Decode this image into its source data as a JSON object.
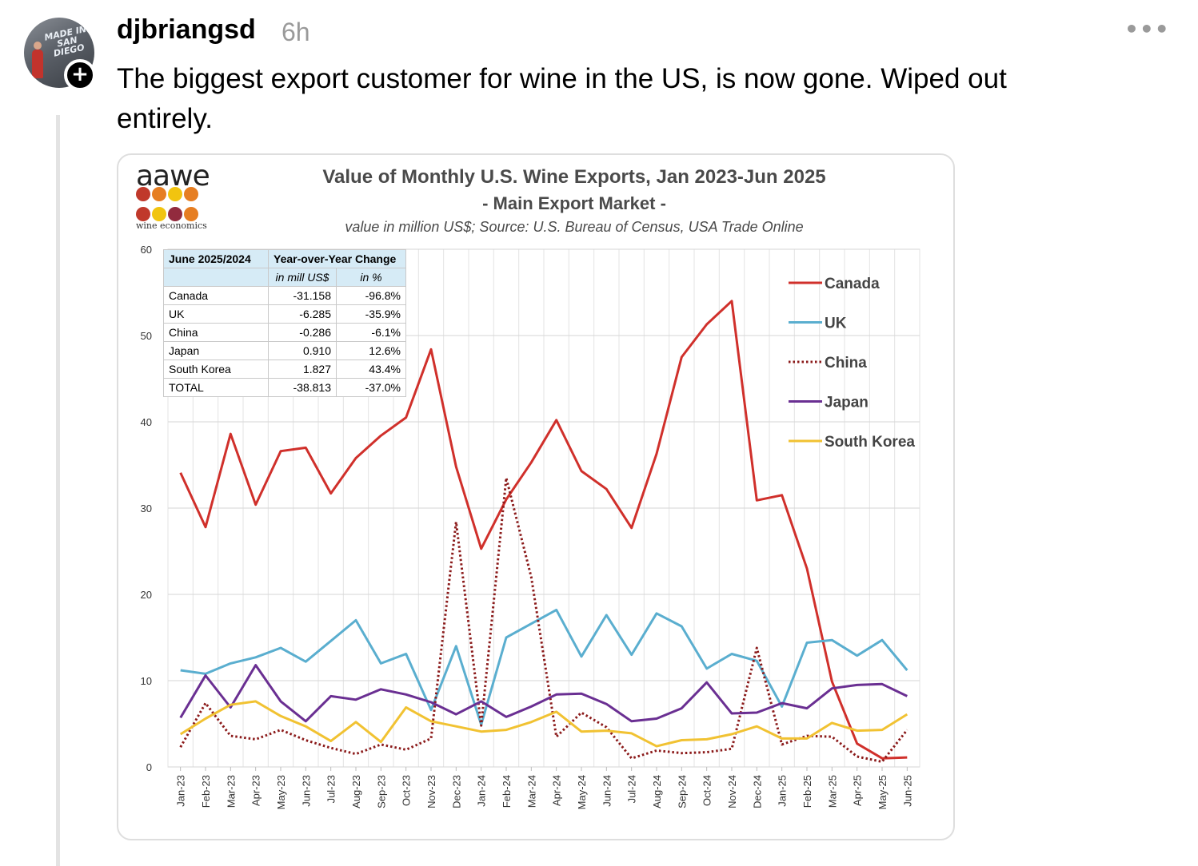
{
  "post": {
    "username": "djbriangsd",
    "time": "6h",
    "text": "The biggest export customer for wine in the US, is now gone. Wiped out entirely.",
    "more_icon": "more-horizontal-icon",
    "avatar_text": "MADE IN SAN DIEGO"
  },
  "logo": {
    "name": "aawe",
    "tagline": "wine economics",
    "dot_colors": [
      "#c0392b",
      "#e67e22",
      "#f1c40f",
      "#e67e22",
      "#c0392b",
      "#f1c40f",
      "#922b3e",
      "#e67e22"
    ]
  },
  "chart_data": {
    "type": "line",
    "title": "Value of Monthly U.S. Wine Exports, Jan 2023-Jun 2025",
    "subtitle": "- Main Export Market -",
    "source": "value in million US$; Source: U.S. Bureau of Census, USA Trade Online",
    "ylim": [
      0,
      60
    ],
    "yticks": [
      0,
      10,
      20,
      30,
      40,
      50,
      60
    ],
    "grid": true,
    "legend_position": "right",
    "x": [
      "Jan-23",
      "Feb-23",
      "Mar-23",
      "Apr-23",
      "May-23",
      "Jun-23",
      "Jul-23",
      "Aug-23",
      "Sep-23",
      "Oct-23",
      "Nov-23",
      "Dec-23",
      "Jan-24",
      "Feb-24",
      "Mar-24",
      "Apr-24",
      "May-24",
      "Jun-24",
      "Jul-24",
      "Aug-24",
      "Sep-24",
      "Oct-24",
      "Nov-24",
      "Dec-24",
      "Jan-25",
      "Feb-25",
      "Mar-25",
      "Apr-25",
      "May-25",
      "Jun-25"
    ],
    "series": [
      {
        "name": "Canada",
        "color": "#d0302b",
        "dash": false,
        "values": [
          34.1,
          27.8,
          38.6,
          30.4,
          36.6,
          37.0,
          31.7,
          35.8,
          38.4,
          40.5,
          48.4,
          34.8,
          25.3,
          31.0,
          35.3,
          40.2,
          34.3,
          32.2,
          27.7,
          36.3,
          47.5,
          51.3,
          54.0,
          30.9,
          31.5,
          23.0,
          9.9,
          2.7,
          1.0,
          1.1
        ]
      },
      {
        "name": "UK",
        "color": "#5aaecf",
        "dash": false,
        "values": [
          11.2,
          10.8,
          12.0,
          12.7,
          13.8,
          12.2,
          14.6,
          17.0,
          12.0,
          13.1,
          6.6,
          14.0,
          4.9,
          15.0,
          16.6,
          18.2,
          12.8,
          17.6,
          13.0,
          17.8,
          16.3,
          11.4,
          13.1,
          12.3,
          7.0,
          14.4,
          14.7,
          12.9,
          14.7,
          11.2
        ]
      },
      {
        "name": "China",
        "color": "#8b1a1a",
        "dash": true,
        "values": [
          2.3,
          7.4,
          3.6,
          3.2,
          4.3,
          3.1,
          2.2,
          1.5,
          2.6,
          2.0,
          3.3,
          28.4,
          4.8,
          33.5,
          22.0,
          3.5,
          6.3,
          4.6,
          1.0,
          1.9,
          1.6,
          1.7,
          2.1,
          13.8,
          2.6,
          3.6,
          3.5,
          1.2,
          0.6,
          4.3
        ]
      },
      {
        "name": "Japan",
        "color": "#6a2f92",
        "dash": false,
        "values": [
          5.7,
          10.6,
          6.9,
          11.8,
          7.6,
          5.3,
          8.2,
          7.8,
          9.0,
          8.4,
          7.5,
          6.1,
          7.6,
          5.8,
          7.0,
          8.4,
          8.5,
          7.3,
          5.3,
          5.6,
          6.8,
          9.8,
          6.2,
          6.3,
          7.4,
          6.8,
          9.1,
          9.5,
          9.6,
          8.2
        ]
      },
      {
        "name": "South Korea",
        "color": "#f1c232",
        "dash": false,
        "values": [
          3.8,
          5.6,
          7.2,
          7.6,
          5.9,
          4.7,
          3.0,
          5.2,
          2.9,
          6.9,
          5.3,
          4.7,
          4.1,
          4.3,
          5.2,
          6.4,
          4.1,
          4.2,
          3.9,
          2.4,
          3.1,
          3.2,
          3.8,
          4.7,
          3.3,
          3.3,
          5.1,
          4.2,
          4.3,
          6.1
        ]
      }
    ]
  },
  "yoy_table": {
    "header": [
      "June 2025/2024",
      "Year-over-Year Change"
    ],
    "subheader": [
      "in mill US$",
      "in %"
    ],
    "rows": [
      [
        "Canada",
        "-31.158",
        "-96.8%"
      ],
      [
        "UK",
        "-6.285",
        "-35.9%"
      ],
      [
        "China",
        "-0.286",
        "-6.1%"
      ],
      [
        "Japan",
        "0.910",
        "12.6%"
      ],
      [
        "South Korea",
        "1.827",
        "43.4%"
      ],
      [
        "TOTAL",
        "-38.813",
        "-37.0%"
      ]
    ]
  }
}
